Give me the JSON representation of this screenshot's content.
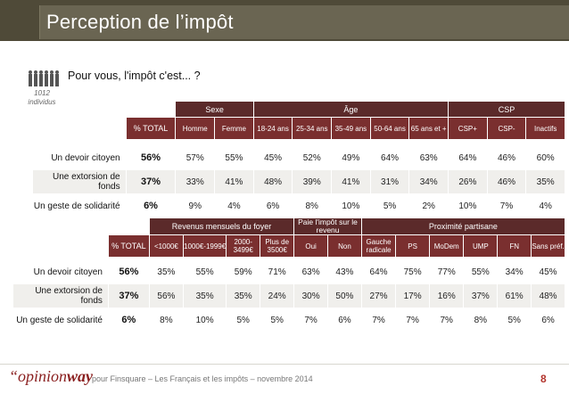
{
  "header": {
    "title": "Perception de l’impôt"
  },
  "question": "Pour vous, l'impôt c'est... ?",
  "sample": "1012 individus",
  "table1": {
    "groups": [
      "Sexe",
      "Âge",
      "CSP"
    ],
    "total_label": "% TOTAL",
    "columns": [
      "Homme",
      "Femme",
      "18-24 ans",
      "25-34 ans",
      "35-49 ans",
      "50-64 ans",
      "65 ans et +",
      "CSP+",
      "CSP-",
      "Inactifs"
    ],
    "rows": [
      {
        "label": "Un devoir citoyen",
        "total": "56%",
        "values": [
          "57%",
          "55%",
          "45%",
          "52%",
          "49%",
          "64%",
          "63%",
          "64%",
          "46%",
          "60%"
        ]
      },
      {
        "label": "Une extorsion de fonds",
        "total": "37%",
        "values": [
          "33%",
          "41%",
          "48%",
          "39%",
          "41%",
          "31%",
          "34%",
          "26%",
          "46%",
          "35%"
        ]
      },
      {
        "label": "Un geste de solidarité",
        "total": "6%",
        "values": [
          "9%",
          "4%",
          "6%",
          "8%",
          "10%",
          "5%",
          "2%",
          "10%",
          "7%",
          "4%"
        ]
      }
    ]
  },
  "table2": {
    "groups": [
      "Revenus mensuels du foyer",
      "Paie l'impôt sur le revenu",
      "Proximité partisane"
    ],
    "total_label": "% TOTAL",
    "columns": [
      "<1000€",
      "1000€-1999€",
      "2000-3499€",
      "Plus de 3500€",
      "Oui",
      "Non",
      "Gauche radicale",
      "PS",
      "MoDem",
      "UMP",
      "FN",
      "Sans préf."
    ],
    "rows": [
      {
        "label": "Un devoir citoyen",
        "total": "56%",
        "values": [
          "35%",
          "55%",
          "59%",
          "71%",
          "63%",
          "43%",
          "64%",
          "75%",
          "77%",
          "55%",
          "34%",
          "45%"
        ]
      },
      {
        "label": "Une extorsion de fonds",
        "total": "37%",
        "values": [
          "56%",
          "35%",
          "35%",
          "24%",
          "30%",
          "50%",
          "27%",
          "17%",
          "16%",
          "37%",
          "61%",
          "48%"
        ]
      },
      {
        "label": "Un geste de solidarité",
        "total": "6%",
        "values": [
          "8%",
          "10%",
          "5%",
          "5%",
          "7%",
          "6%",
          "7%",
          "7%",
          "7%",
          "8%",
          "5%",
          "6%"
        ]
      }
    ]
  },
  "footer": {
    "logo_part1": "“opinion",
    "logo_part2": "way",
    "text": "pour Finsquare – Les Français et les impôts – novembre 2014",
    "page": "8"
  },
  "colors": {
    "header": "#4f4a38",
    "accent": "#7a2f2f",
    "logo": "#8a1f1f"
  }
}
